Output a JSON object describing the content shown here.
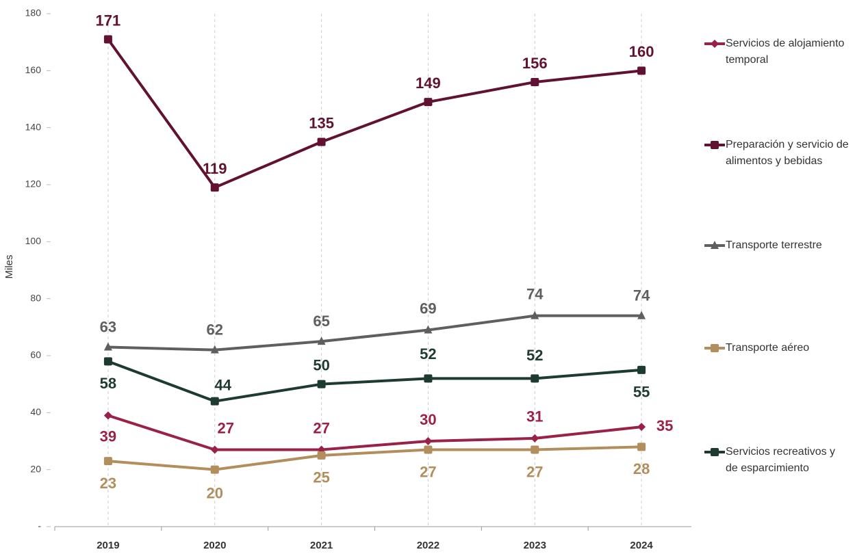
{
  "chart_data": {
    "type": "line",
    "y_label": "Miles",
    "categories": [
      "2019",
      "2020",
      "2021",
      "2022",
      "2023",
      "2024"
    ],
    "series": [
      {
        "name": "Servicios de alojamiento temporal",
        "color": "#9b2247",
        "marker": "diamond",
        "values": [
          39,
          27,
          27,
          30,
          31,
          35
        ]
      },
      {
        "name": "Preparación y servicio de alimentos y bebidas",
        "color": "#611232",
        "marker": "square",
        "values": [
          171,
          119,
          135,
          149,
          156,
          160
        ]
      },
      {
        "name": "Transporte terrestre",
        "color": "#5f5f5f",
        "marker": "triangle",
        "values": [
          63,
          62,
          65,
          69,
          74,
          74
        ]
      },
      {
        "name": "Transporte aéreo",
        "color": "#b38e5d",
        "marker": "square",
        "values": [
          23,
          20,
          25,
          27,
          27,
          28
        ]
      },
      {
        "name": "Servicios recreativos y de esparcimiento",
        "color": "#1e3b32",
        "marker": "square",
        "values": [
          58,
          44,
          50,
          52,
          52,
          55
        ]
      }
    ],
    "ylim": [
      0,
      180
    ],
    "yticks": [
      {
        "value": 0,
        "label": "-"
      },
      20,
      40,
      60,
      80,
      100,
      120,
      140,
      160,
      180
    ],
    "grid": true
  }
}
